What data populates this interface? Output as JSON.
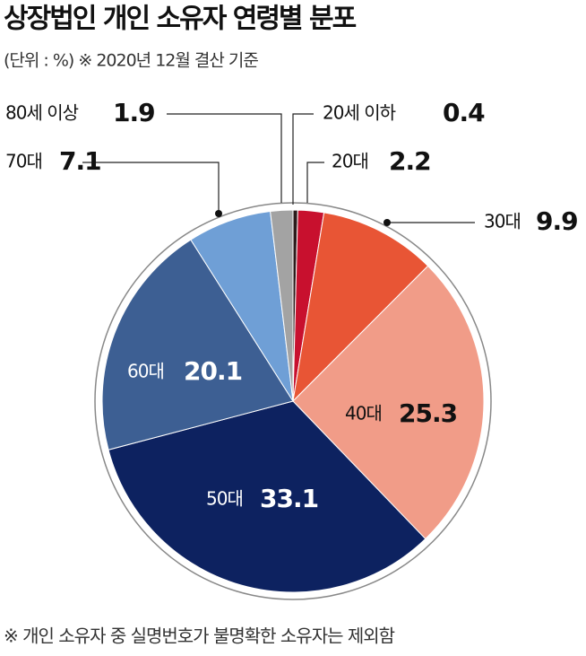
{
  "chart_data": {
    "type": "pie",
    "title": "상장법인 개인 소유자 연령별 분포",
    "subtitle": "(단위 : %) ※ 2020년 12월 결산 기준",
    "footnote": "※ 개인 소유자 중 실명번호가 불명확한 소유자는 제외함",
    "categories": [
      "20세 이하",
      "20대",
      "30대",
      "40대",
      "50대",
      "60대",
      "70대",
      "80세 이상"
    ],
    "values": [
      0.4,
      2.2,
      9.9,
      25.3,
      33.1,
      20.1,
      7.1,
      1.9
    ],
    "colors": [
      "#2b1b1b",
      "#c8102e",
      "#e85535",
      "#f19c88",
      "#0d2260",
      "#3d5f93",
      "#6f9fd6",
      "#a3a3a3"
    ]
  }
}
